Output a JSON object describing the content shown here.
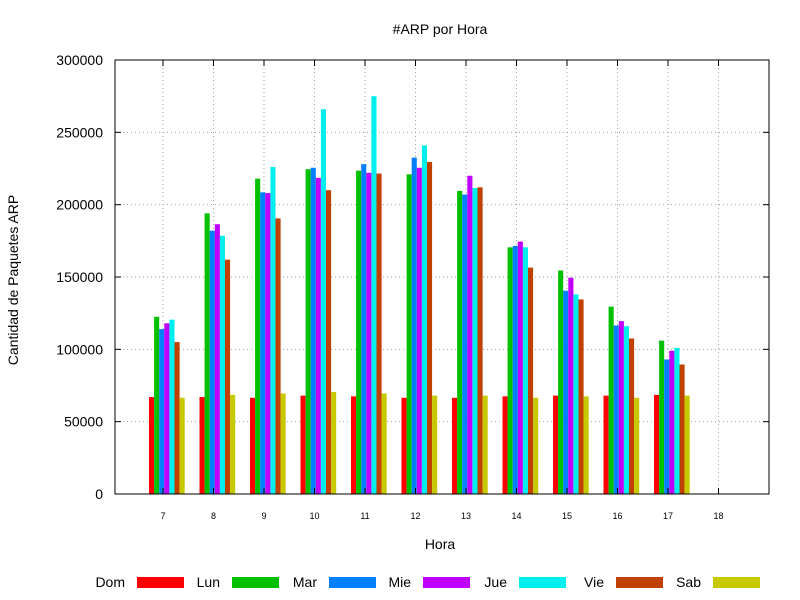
{
  "chart_data": {
    "type": "bar",
    "title": "#ARP por Hora",
    "xlabel": "Hora",
    "ylabel": "Cantidad de Paquetes ARP",
    "ylim": [
      0,
      300000
    ],
    "yticks": [
      "0",
      "50000",
      "100000",
      "150000",
      "200000",
      "250000",
      "300000"
    ],
    "grid": true,
    "legend_placement": "bottom",
    "categories": [
      "7",
      "8",
      "9",
      "10",
      "11",
      "12",
      "13",
      "14",
      "15",
      "16",
      "17",
      "18"
    ],
    "series": [
      {
        "name": "Dom",
        "color": "#ff0000",
        "values": [
          67000,
          67000,
          66500,
          68000,
          67500,
          66500,
          66500,
          67500,
          68000,
          68000,
          68500,
          null
        ]
      },
      {
        "name": "Lun",
        "color": "#00c000",
        "values": [
          122500,
          194000,
          218000,
          224500,
          223500,
          221000,
          209500,
          170500,
          154500,
          129500,
          106000,
          null
        ]
      },
      {
        "name": "Mar",
        "color": "#0080ff",
        "values": [
          114000,
          182000,
          208500,
          225500,
          228000,
          232500,
          207000,
          171500,
          140500,
          116500,
          93000,
          null
        ]
      },
      {
        "name": "Mie",
        "color": "#c000ff",
        "values": [
          118000,
          186500,
          208000,
          218500,
          222000,
          225500,
          220000,
          174500,
          149500,
          119500,
          99000,
          null
        ]
      },
      {
        "name": "Jue",
        "color": "#00eeee",
        "values": [
          120500,
          178500,
          226000,
          266000,
          275000,
          241000,
          211500,
          170500,
          138000,
          116000,
          101000,
          null
        ]
      },
      {
        "name": "Vie",
        "color": "#c04000",
        "values": [
          105000,
          162000,
          190500,
          210000,
          221500,
          229500,
          212000,
          156500,
          134500,
          107500,
          89500,
          null
        ]
      },
      {
        "name": "Sab",
        "color": "#c8c800",
        "values": [
          66500,
          68500,
          69500,
          70500,
          69500,
          68000,
          68000,
          66500,
          67500,
          66500,
          68000,
          null
        ]
      }
    ]
  }
}
